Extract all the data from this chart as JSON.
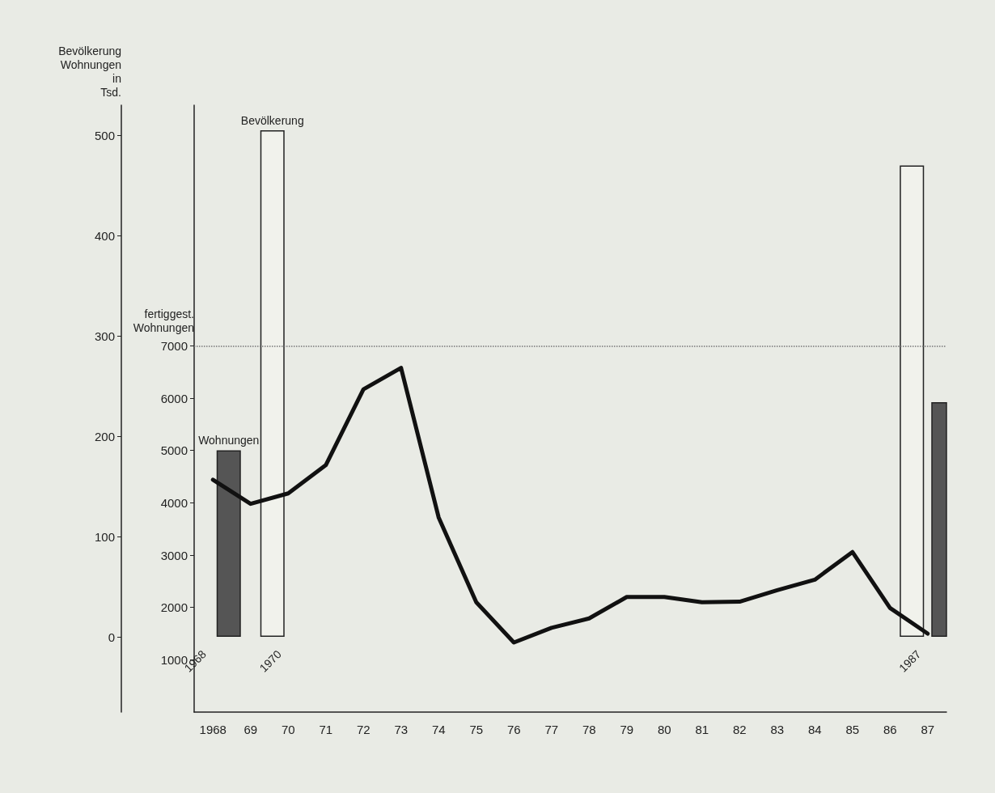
{
  "chart_data": {
    "type": "line",
    "ylabel": "fertiggest. Wohnungen",
    "y2label": "Bevölkerung Wohnungen in Tsd.",
    "categories": [
      "1968",
      "69",
      "70",
      "71",
      "72",
      "73",
      "74",
      "75",
      "76",
      "77",
      "78",
      "79",
      "80",
      "81",
      "82",
      "83",
      "84",
      "85",
      "86",
      "87"
    ],
    "series": [
      {
        "type": "bar",
        "axis": "y2",
        "name": "Bevölkerung",
        "color": "#f1f2ec",
        "values": [
          null,
          null,
          505,
          null,
          null,
          null,
          null,
          null,
          null,
          null,
          null,
          null,
          null,
          null,
          null,
          null,
          null,
          null,
          null,
          470
        ]
      },
      {
        "type": "bar",
        "axis": "y2",
        "name": "Wohnungen",
        "color": "#555555",
        "values": [
          186,
          null,
          null,
          null,
          null,
          null,
          null,
          null,
          null,
          null,
          null,
          null,
          null,
          null,
          null,
          null,
          null,
          null,
          null,
          234
        ]
      },
      {
        "color": "#111111",
        "values": [
          4440,
          3980,
          4180,
          4720,
          6170,
          6580,
          3720,
          2100,
          1330,
          1610,
          1790,
          2200,
          2200,
          2100,
          2110,
          2330,
          2530,
          3060,
          1990,
          1500
        ]
      }
    ],
    "annotations": [
      "1968",
      "1970",
      "1987"
    ],
    "ref_lines": [
      {
        "axis": "y",
        "value": 7000,
        "line_style": "dotted",
        "color": "#777777"
      }
    ],
    "ylim": [
      0,
      11600
    ],
    "yticks": [
      1000,
      2000,
      3000,
      4000,
      5000,
      6000,
      7000
    ],
    "y2lim": [
      -75,
      530
    ],
    "y2ticks": [
      0,
      100,
      200,
      300,
      400,
      500
    ],
    "marker": "none",
    "line_style": "solid",
    "grid": false,
    "legend": false
  }
}
